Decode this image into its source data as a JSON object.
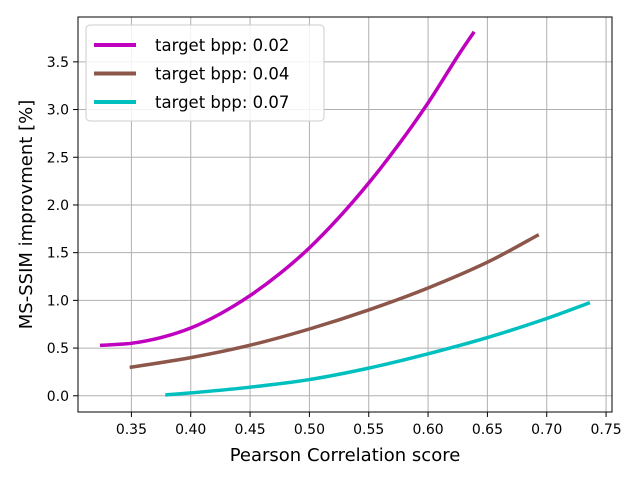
{
  "chart_data": {
    "type": "line",
    "title": "",
    "xlabel": "Pearson Correlation score",
    "ylabel": "MS-SSIM improvment [%]",
    "xlim": [
      0.305,
      0.755
    ],
    "ylim": [
      -0.17,
      3.97
    ],
    "xticks": [
      0.35,
      0.4,
      0.45,
      0.5,
      0.55,
      0.6,
      0.65,
      0.7,
      0.75
    ],
    "yticks": [
      0.0,
      0.5,
      1.0,
      1.5,
      2.0,
      2.5,
      3.0,
      3.5
    ],
    "xtick_labels": [
      "0.35",
      "0.40",
      "0.45",
      "0.50",
      "0.55",
      "0.60",
      "0.65",
      "0.70",
      "0.75"
    ],
    "ytick_labels": [
      "0.0",
      "0.5",
      "1.0",
      "1.5",
      "2.0",
      "2.5",
      "3.0",
      "3.5"
    ],
    "grid": true,
    "legend_position": "top-left",
    "series": [
      {
        "name": "target bpp: 0.02",
        "color": "#bf00bf",
        "x": [
          0.325,
          0.35,
          0.375,
          0.4,
          0.425,
          0.45,
          0.475,
          0.5,
          0.525,
          0.55,
          0.575,
          0.6,
          0.625,
          0.638
        ],
        "y": [
          0.53,
          0.55,
          0.61,
          0.71,
          0.86,
          1.05,
          1.28,
          1.55,
          1.87,
          2.23,
          2.63,
          3.07,
          3.56,
          3.8
        ]
      },
      {
        "name": "target bpp: 0.04",
        "color": "#8c564b",
        "x": [
          0.35,
          0.4,
          0.45,
          0.5,
          0.55,
          0.6,
          0.65,
          0.692
        ],
        "y": [
          0.3,
          0.4,
          0.53,
          0.7,
          0.9,
          1.13,
          1.4,
          1.68
        ]
      },
      {
        "name": "target bpp: 0.07",
        "color": "#00bfbf",
        "x": [
          0.38,
          0.4,
          0.45,
          0.5,
          0.55,
          0.6,
          0.65,
          0.7,
          0.735
        ],
        "y": [
          0.01,
          0.03,
          0.09,
          0.17,
          0.29,
          0.44,
          0.61,
          0.81,
          0.97
        ]
      }
    ]
  }
}
